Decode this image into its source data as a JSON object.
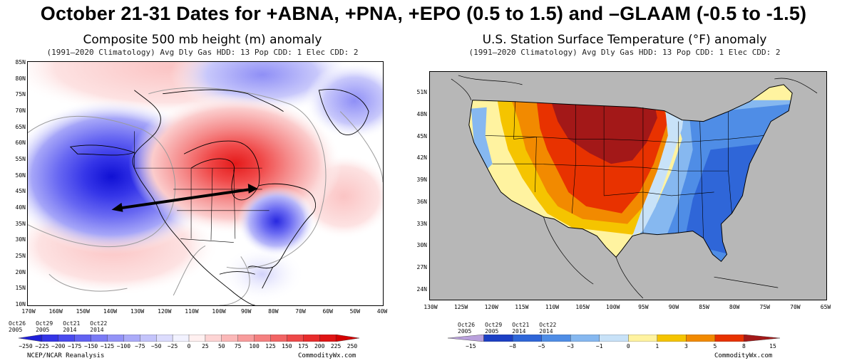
{
  "main_title": "October 21-31 Dates for +ABNA, +PNA, +EPO (0.5 to 1.5) and –GLAAM (-0.5 to -1.5)",
  "left_panel": {
    "title": "Composite 500 mb height (m) anomaly",
    "subtitle": "(1991–2020 Climatology) Avg Dly Gas HDD: 13 Pop CDD: 1 Elec CDD: 2",
    "y_ticks": [
      "85N",
      "80N",
      "75N",
      "70N",
      "65N",
      "60N",
      "55N",
      "50N",
      "45N",
      "40N",
      "35N",
      "30N",
      "25N",
      "20N",
      "15N",
      "10N"
    ],
    "x_ticks": [
      "170W",
      "160W",
      "150W",
      "140W",
      "130W",
      "120W",
      "110W",
      "100W",
      "90W",
      "80W",
      "70W",
      "60W",
      "50W",
      "40W"
    ],
    "dates": [
      {
        "top": "Oct26",
        "bottom": "2005"
      },
      {
        "top": "Oct29",
        "bottom": "2005"
      },
      {
        "top": "Oct21",
        "bottom": "2014"
      },
      {
        "top": "Oct22",
        "bottom": "2014"
      }
    ],
    "colorbar_labels": [
      "−250",
      "−225",
      "−200",
      "−175",
      "−150",
      "−125",
      "−100",
      "−75",
      "−50",
      "−25",
      "0",
      "25",
      "50",
      "75",
      "100",
      "125",
      "150",
      "175",
      "200",
      "225",
      "250"
    ],
    "colorbar_colors": [
      "#1f1fd8",
      "#3434e6",
      "#4a4aee",
      "#6262f2",
      "#7a7af5",
      "#9393f7",
      "#ababf9",
      "#c4c4fb",
      "#dcdcfd",
      "#f2f2ff",
      "#fff0f0",
      "#fdd4d4",
      "#fbb8b8",
      "#f89c9c",
      "#f58080",
      "#f26464",
      "#ee4848",
      "#e82c2c",
      "#e01414",
      "#d40000"
    ],
    "credit_left": "NCEP/NCAR Reanalysis",
    "credit_right": "CommodityWx.com"
  },
  "right_panel": {
    "title": "U.S. Station Surface Temperature (°F) anomaly",
    "subtitle": "(1991–2020 Climatology) Avg Dly Gas HDD: 13 Pop CDD: 1 Elec CDD: 2",
    "y_ticks": [
      "51N",
      "48N",
      "45N",
      "42N",
      "39N",
      "36N",
      "33N",
      "30N",
      "27N",
      "24N"
    ],
    "x_ticks": [
      "130W",
      "125W",
      "120W",
      "115W",
      "110W",
      "105W",
      "100W",
      "95W",
      "90W",
      "85W",
      "80W",
      "75W",
      "70W",
      "65W"
    ],
    "dates": [
      {
        "top": "Oct26",
        "bottom": "2005"
      },
      {
        "top": "Oct29",
        "bottom": "2005"
      },
      {
        "top": "Oct21",
        "bottom": "2014"
      },
      {
        "top": "Oct22",
        "bottom": "2014"
      }
    ],
    "colorbar_labels": [
      "−15",
      "−8",
      "−5",
      "−3",
      "−1",
      "0",
      "1",
      "3",
      "5",
      "8",
      "15"
    ],
    "colorbar_colors": [
      "#b9a0dc",
      "#1c3fc4",
      "#2f66d8",
      "#4f8de6",
      "#86b8f0",
      "#c8e2f8",
      "#fff3a0",
      "#f5c400",
      "#f28a00",
      "#e83200",
      "#a31818"
    ],
    "credit_right": "CommodityWx.com"
  }
}
